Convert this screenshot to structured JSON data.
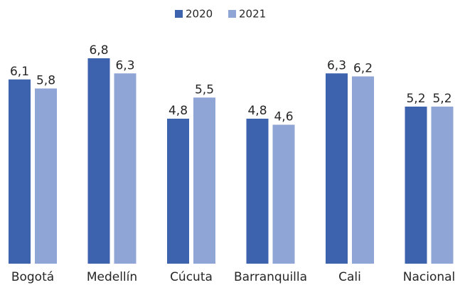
{
  "chart_data": {
    "type": "bar",
    "categories": [
      "Bogotá",
      "Medellín",
      "Cúcuta",
      "Barranquilla",
      "Cali",
      "Nacional"
    ],
    "series": [
      {
        "name": "2020",
        "color": "#3d62ae",
        "values": [
          6.1,
          6.8,
          4.8,
          4.8,
          6.3,
          5.2
        ],
        "value_labels": [
          "6,1",
          "6,8",
          "4,8",
          "4,8",
          "6,3",
          "5,2"
        ]
      },
      {
        "name": "2021",
        "color": "#8fa5d6",
        "values": [
          5.8,
          6.3,
          5.5,
          4.6,
          6.2,
          5.2
        ],
        "value_labels": [
          "5,8",
          "6,3",
          "5,5",
          "4,6",
          "6,2",
          "5,2"
        ]
      }
    ],
    "legend": "top"
  }
}
